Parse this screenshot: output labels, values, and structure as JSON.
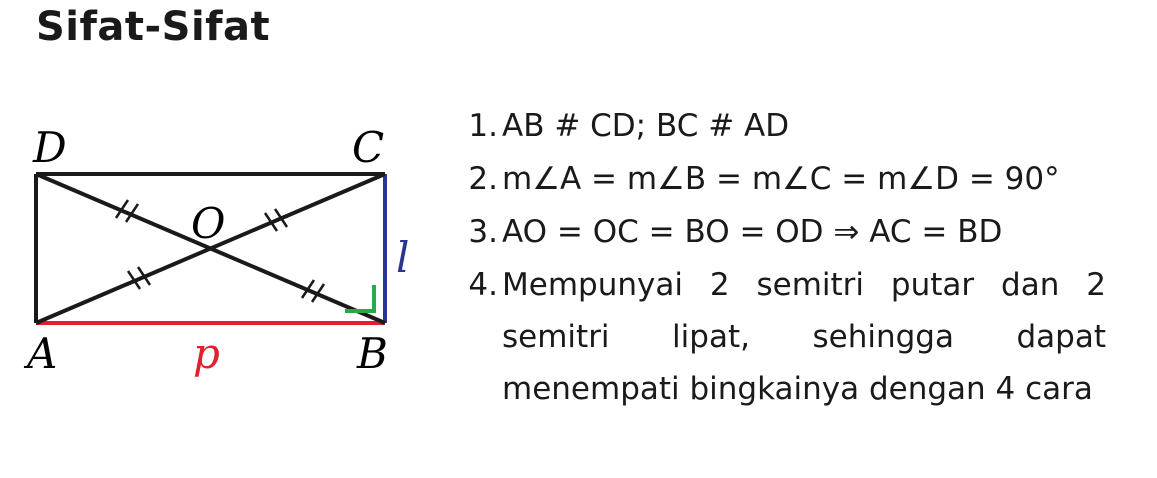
{
  "title": "Sifat-Sifat",
  "diagram": {
    "vertices": {
      "A": "A",
      "B": "B",
      "C": "C",
      "D": "D",
      "O": "O"
    },
    "side_labels": {
      "length": "p",
      "width": "l"
    },
    "colors": {
      "outline": "#1a1a1a",
      "length_side": "#e0202b",
      "width_side": "#2a3590",
      "right_angle_mark": "#2aa84a"
    }
  },
  "properties": [
    {
      "num": "1.",
      "text": "AB # CD; BC # AD"
    },
    {
      "num": "2.",
      "text": "m∠A = m∠B = m∠C = m∠D = 90°"
    },
    {
      "num": "3.",
      "text": "AO = OC = BO = OD ⇒ AC = BD"
    },
    {
      "num": "4.",
      "text": "Mempunyai 2 semitri putar dan 2 semitri lipat, sehingga dapat menempati bingkainya dengan 4 cara"
    }
  ]
}
